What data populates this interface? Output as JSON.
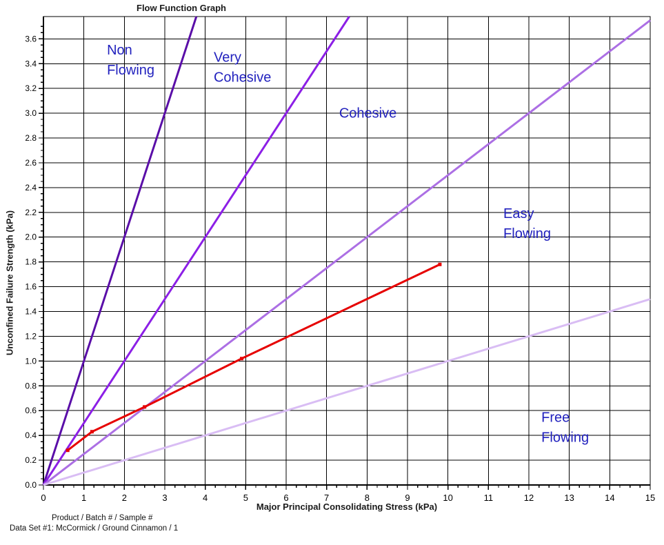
{
  "footer": {
    "line1": "Product / Batch # / Sample #",
    "line2": "Data Set #1: McCormick / Ground Cinnamon / 1"
  },
  "chart_data": {
    "type": "line",
    "title": "Flow Function Graph",
    "xlabel": "Major Principal Consolidating Stress (kPa)",
    "ylabel": "Unconfined Failure Strength (kPa)",
    "xlim": [
      0,
      15
    ],
    "ylim": [
      0,
      3.78
    ],
    "x_major_tick": 1,
    "x_minor_tick": 0.25,
    "y_major_tick": 0.2,
    "y_minor_tick": 0.05,
    "grid": "on",
    "grid_color": "#000000",
    "axis_color": "#000000",
    "boundary_lines": [
      {
        "name": "non-flowing-boundary",
        "flow_function": 1,
        "slope": 1.0,
        "color": "#5A0EA8"
      },
      {
        "name": "very-cohesive-boundary",
        "flow_function": 2,
        "slope": 0.5,
        "color": "#8C1FE6"
      },
      {
        "name": "cohesive-boundary",
        "flow_function": 4,
        "slope": 0.25,
        "color": "#AC6FE4"
      },
      {
        "name": "easy-flowing-boundary",
        "flow_function": 10,
        "slope": 0.1,
        "color": "#D9BDF4"
      }
    ],
    "series": [
      {
        "name": "flow-function-data",
        "label": "McCormick / Ground Cinnamon / 1",
        "color": "#E60000",
        "marker": "square",
        "points": [
          [
            0.6,
            0.28
          ],
          [
            1.2,
            0.43
          ],
          [
            2.5,
            0.63
          ],
          [
            4.9,
            1.02
          ],
          [
            9.8,
            1.78
          ]
        ]
      }
    ],
    "region_labels": [
      {
        "lines": [
          "Non",
          "Flowing"
        ],
        "x": 1.57,
        "y": 3.58,
        "color": "#2222BE"
      },
      {
        "lines": [
          "Very",
          "Cohesive"
        ],
        "x": 4.21,
        "y": 3.52,
        "color": "#2222BE"
      },
      {
        "lines": [
          "Cohesive"
        ],
        "x": 7.31,
        "y": 3.07,
        "color": "#2222BE"
      },
      {
        "lines": [
          "Easy",
          "Flowing"
        ],
        "x": 11.37,
        "y": 2.26,
        "color": "#2222BE"
      },
      {
        "lines": [
          "Free",
          "Flowing"
        ],
        "x": 12.31,
        "y": 0.615,
        "color": "#2222BE"
      }
    ]
  }
}
